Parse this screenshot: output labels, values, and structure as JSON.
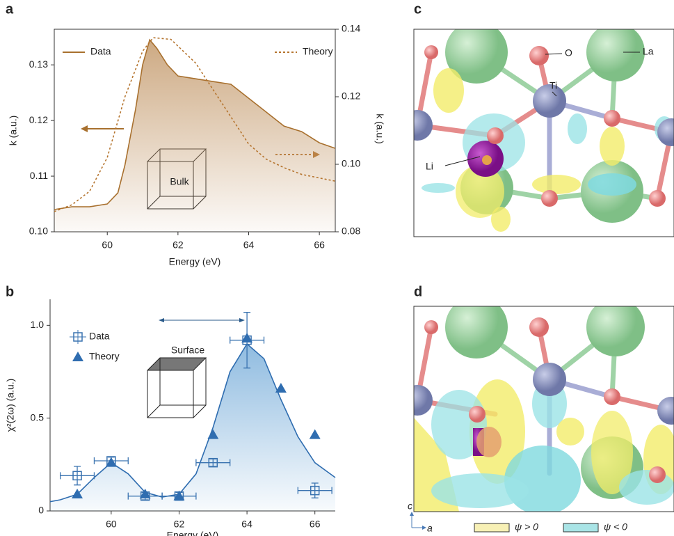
{
  "panel_labels": [
    "a",
    "b",
    "c",
    "d"
  ],
  "structure_labels": [
    "O",
    "La",
    "Ti",
    "Li"
  ],
  "orbital_legend": [
    "ψ > 0",
    "ψ < 0"
  ],
  "lattice_axes": [
    "c",
    "a"
  ],
  "chart_data": [
    {
      "type": "line",
      "xlabel": "Energy (eV)",
      "ylabel": "k (a.u.)",
      "y2label": "k (a.u.)",
      "xlim": [
        58.5,
        66.45
      ],
      "xticks": [
        60,
        62,
        64,
        66
      ],
      "ylim": [
        0.1,
        0.1364
      ],
      "yticks": [
        {
          "value": 0.1,
          "label": "0.10"
        },
        0.11,
        0.12,
        0.13
      ],
      "y2lim": [
        0.08,
        0.14
      ],
      "y2ticks": [
        {
          "value": 0.08,
          "label": "0.08"
        },
        {
          "value": 0.1,
          "label": "0.10"
        },
        0.12,
        0.14
      ],
      "annotations": [
        "Bulk"
      ],
      "series": [
        {
          "name": "Data",
          "color": "#a8702e",
          "style": "solid",
          "x": [
            58.5,
            59,
            59.5,
            60,
            60.3,
            60.5,
            60.8,
            61,
            61.2,
            61.4,
            61.7,
            62,
            62.5,
            63,
            63.5,
            64,
            64.5,
            65,
            65.5,
            66,
            66.45
          ],
          "values": [
            0.104,
            0.1045,
            0.1045,
            0.105,
            0.107,
            0.112,
            0.122,
            0.13,
            0.1345,
            0.133,
            0.13,
            0.128,
            0.1275,
            0.127,
            0.1265,
            0.124,
            0.1215,
            0.119,
            0.118,
            0.116,
            0.115
          ]
        },
        {
          "name": "Theory",
          "color": "#b5742e",
          "style": "dashed",
          "axis": "y2",
          "x": [
            58.5,
            59,
            59.5,
            60,
            60.5,
            61,
            61.3,
            61.8,
            62.5,
            63,
            63.5,
            64,
            64.5,
            65,
            65.5,
            66.45
          ],
          "values": [
            0.086,
            0.088,
            0.092,
            0.102,
            0.12,
            0.1335,
            0.1375,
            0.137,
            0.13,
            0.122,
            0.114,
            0.106,
            0.1015,
            0.099,
            0.097,
            0.095
          ]
        }
      ]
    },
    {
      "type": "scatter",
      "xlabel": "Energy (eV)",
      "ylabel": "χ²(2ω) (a.u.)",
      "xlim": [
        58.2,
        66.6
      ],
      "xticks": [
        60,
        62,
        64,
        66
      ],
      "ylim": [
        0,
        1.14
      ],
      "yticks": [
        0,
        0.5,
        {
          "value": 1,
          "label": "1.0"
        }
      ],
      "annotations": [
        "Surface"
      ],
      "series": [
        {
          "name": "Data",
          "color": "#3a73b0",
          "marker": "square-open",
          "x": [
            59,
            60,
            61,
            62,
            63,
            64,
            66
          ],
          "values": [
            0.19,
            0.27,
            0.08,
            0.08,
            0.26,
            0.92,
            0.11
          ],
          "xerr": [
            0.5,
            0.5,
            0.5,
            0.5,
            0.5,
            0.5,
            0.5
          ],
          "yerr": [
            0.05,
            0.02,
            0.02,
            0.02,
            0.02,
            0.15,
            0.04
          ]
        },
        {
          "name": "Theory",
          "color": "#2f6db0",
          "marker": "triangle",
          "x": [
            59,
            60,
            61,
            62,
            63,
            64,
            65,
            66
          ],
          "values": [
            0.09,
            0.26,
            0.09,
            0.08,
            0.41,
            0.93,
            0.66,
            0.41
          ]
        }
      ],
      "fit": {
        "color": "#2f6db0",
        "x": [
          58.2,
          58.5,
          59,
          59.5,
          60,
          60.5,
          61,
          61.5,
          62,
          62.5,
          63,
          63.5,
          64,
          64.5,
          65,
          65.5,
          66,
          66.6
        ],
        "values": [
          0.05,
          0.06,
          0.09,
          0.18,
          0.26,
          0.2,
          0.1,
          0.075,
          0.09,
          0.2,
          0.45,
          0.75,
          0.9,
          0.82,
          0.6,
          0.4,
          0.26,
          0.18
        ]
      }
    }
  ]
}
